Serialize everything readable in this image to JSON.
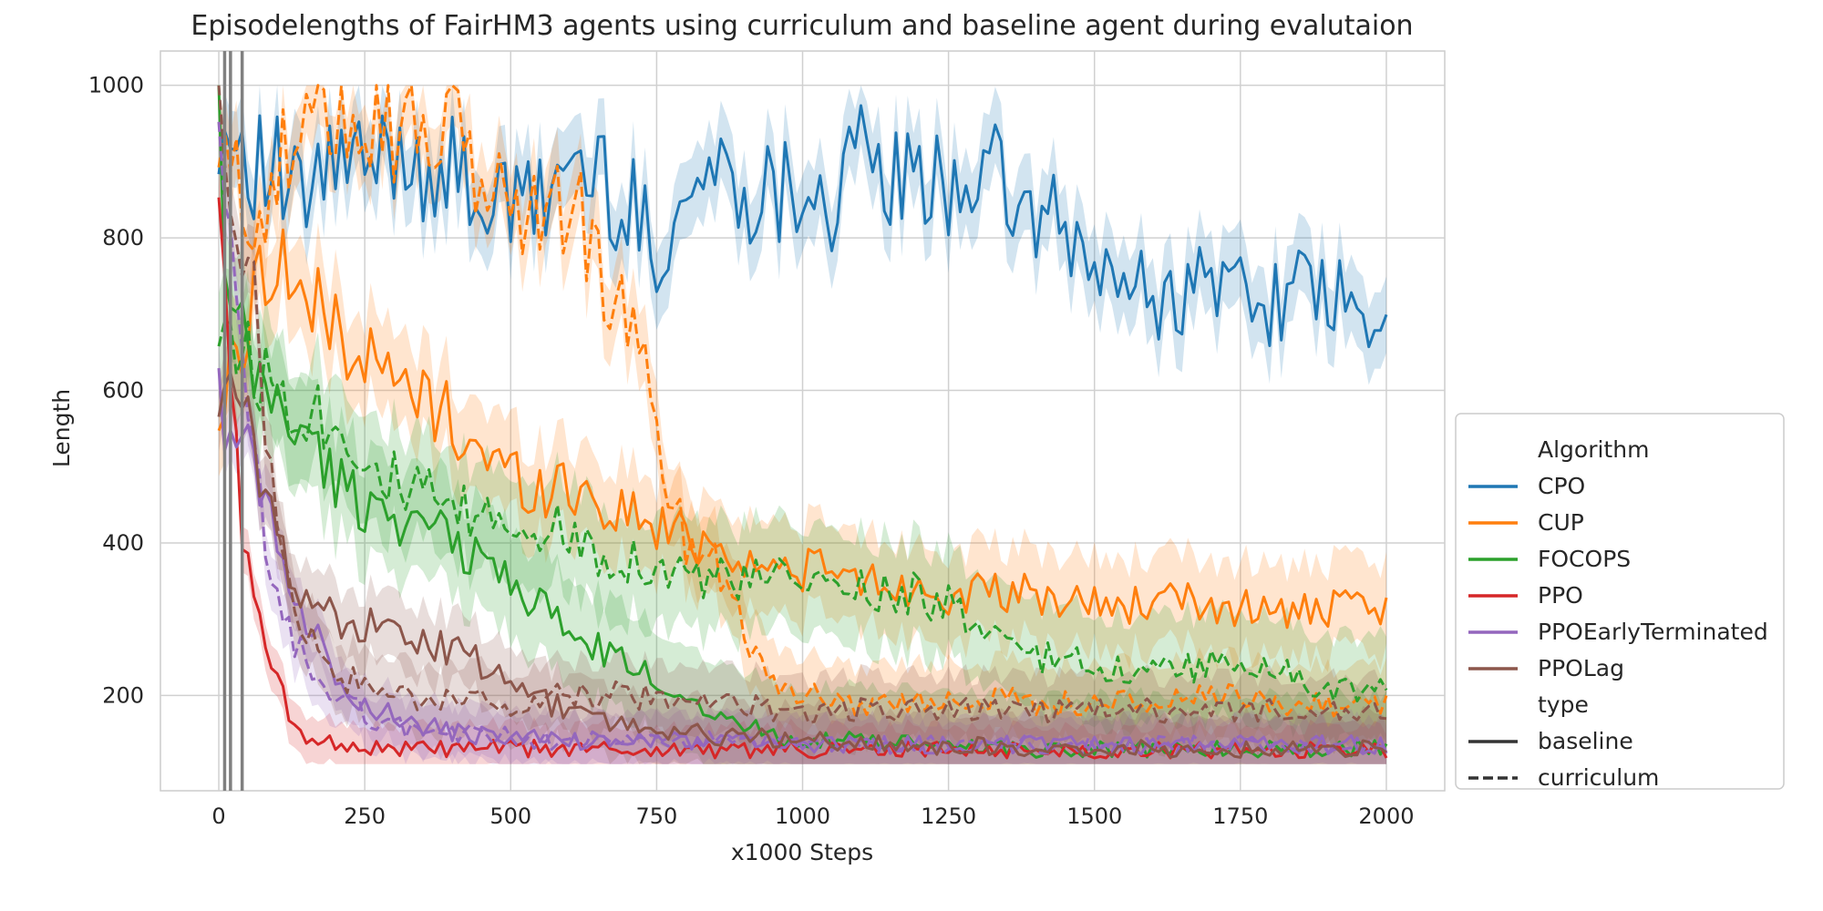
{
  "chart_data": {
    "type": "line",
    "title": "Episodelengths of FairHM3 agents using curriculum and baseline agent during evalutaion",
    "xlabel": "x1000 Steps",
    "ylabel": "Length",
    "xlim": [
      -100,
      2100
    ],
    "ylim": [
      75,
      1045
    ],
    "xticks": [
      0,
      250,
      500,
      750,
      1000,
      1250,
      1500,
      1750,
      2000
    ],
    "yticks": [
      200,
      400,
      600,
      800,
      1000
    ],
    "grid": true,
    "legend_placement": "center-right outside",
    "vertical_markers": [
      10,
      20,
      40
    ],
    "legend": {
      "algorithm_title": "Algorithm",
      "type_title": "type",
      "types": [
        {
          "name": "baseline",
          "dash": "solid"
        },
        {
          "name": "curriculum",
          "dash": "dashed"
        }
      ]
    },
    "series": [
      {
        "name": "CPO",
        "color": "#1f77b4",
        "baseline": {
          "x": [
            0,
            10,
            30,
            60,
            100,
            140,
            200,
            250,
            300,
            350,
            400,
            450,
            500,
            550,
            600,
            650,
            700,
            750,
            800,
            850,
            900,
            950,
            1000,
            1050,
            1100,
            1150,
            1200,
            1250,
            1300,
            1350,
            1400,
            1450,
            1500,
            1550,
            1600,
            1650,
            1700,
            1750,
            1800,
            1850,
            1900,
            1950,
            2000
          ],
          "y": [
            960,
            930,
            950,
            900,
            880,
            840,
            900,
            880,
            920,
            900,
            880,
            860,
            830,
            850,
            900,
            880,
            840,
            790,
            850,
            890,
            870,
            860,
            880,
            850,
            900,
            880,
            860,
            870,
            900,
            850,
            830,
            800,
            760,
            740,
            720,
            730,
            740,
            740,
            720,
            730,
            720,
            690,
            660
          ],
          "band": 50
        },
        "curriculum": null
      },
      {
        "name": "CUP",
        "color": "#ff7f0e",
        "baseline": {
          "x": [
            0,
            20,
            50,
            80,
            120,
            160,
            200,
            250,
            300,
            350,
            400,
            450,
            500,
            550,
            600,
            650,
            700,
            750,
            800,
            850,
            900,
            950,
            1000,
            1100,
            1200,
            1300,
            1400,
            1500,
            1600,
            1700,
            1800,
            1900,
            2000
          ],
          "y": [
            560,
            620,
            690,
            780,
            760,
            700,
            690,
            640,
            610,
            590,
            560,
            520,
            490,
            470,
            480,
            450,
            440,
            420,
            410,
            400,
            380,
            360,
            370,
            350,
            340,
            330,
            330,
            320,
            320,
            320,
            310,
            310,
            310
          ],
          "band": 60
        },
        "curriculum": {
          "x": [
            0,
            20,
            50,
            80,
            120,
            160,
            200,
            250,
            300,
            350,
            400,
            450,
            500,
            550,
            600,
            650,
            700,
            720,
            750,
            780,
            800,
            850,
            880,
            900,
            950,
            1000,
            1100,
            1200,
            1300,
            1400,
            1500,
            1600,
            1700,
            1800,
            1900,
            2000
          ],
          "y": [
            900,
            880,
            840,
            860,
            900,
            960,
            990,
            970,
            950,
            960,
            930,
            880,
            850,
            820,
            860,
            760,
            690,
            640,
            550,
            450,
            400,
            380,
            350,
            280,
            220,
            200,
            190,
            190,
            200,
            190,
            190,
            190,
            200,
            190,
            190,
            190
          ],
          "band": 50
        }
      },
      {
        "name": "FOCOPS",
        "color": "#2ca02c",
        "baseline": {
          "x": [
            0,
            10,
            30,
            60,
            100,
            150,
            200,
            250,
            300,
            350,
            400,
            450,
            500,
            550,
            600,
            650,
            700,
            750,
            800,
            850,
            900,
            950,
            1000,
            1100,
            1200,
            1300,
            1400,
            1500,
            1600,
            1700,
            1800,
            1900,
            2000
          ],
          "y": [
            990,
            720,
            680,
            620,
            580,
            540,
            480,
            450,
            440,
            420,
            400,
            380,
            350,
            320,
            280,
            260,
            240,
            220,
            200,
            180,
            160,
            150,
            140,
            140,
            135,
            135,
            130,
            130,
            130,
            130,
            130,
            130,
            130
          ],
          "band": 70
        },
        "curriculum": {
          "x": [
            0,
            20,
            50,
            100,
            150,
            200,
            250,
            300,
            350,
            400,
            450,
            500,
            550,
            600,
            650,
            700,
            750,
            800,
            850,
            900,
            950,
            1000,
            1050,
            1100,
            1150,
            1200,
            1250,
            1300,
            1400,
            1500,
            1600,
            1700,
            1800,
            1900,
            2000
          ],
          "y": [
            700,
            680,
            640,
            600,
            580,
            560,
            520,
            480,
            460,
            440,
            430,
            430,
            420,
            410,
            390,
            380,
            370,
            360,
            350,
            350,
            350,
            350,
            340,
            340,
            340,
            330,
            320,
            280,
            250,
            240,
            230,
            240,
            240,
            200,
            220
          ],
          "band": 70
        }
      },
      {
        "name": "PPO",
        "color": "#d62728",
        "baseline": {
          "x": [
            0,
            10,
            20,
            40,
            60,
            80,
            100,
            120,
            150,
            200,
            300,
            500,
            1000,
            1500,
            2000
          ],
          "y": [
            880,
            750,
            600,
            430,
            320,
            260,
            220,
            170,
            150,
            135,
            130,
            130,
            128,
            128,
            128
          ],
          "band": 30
        },
        "curriculum": null
      },
      {
        "name": "PPOEarlyTerminated",
        "color": "#9467bd",
        "baseline": {
          "x": [
            0,
            20,
            50,
            80,
            100,
            150,
            200,
            250,
            300,
            400,
            500,
            600,
            700,
            800,
            900,
            1000,
            1200,
            1500,
            1800,
            2000
          ],
          "y": [
            580,
            560,
            520,
            460,
            400,
            300,
            230,
            190,
            170,
            150,
            145,
            140,
            140,
            140,
            140,
            135,
            135,
            135,
            135,
            135
          ],
          "band": 35
        },
        "curriculum": {
          "x": [
            0,
            20,
            50,
            80,
            100,
            150,
            200,
            250,
            300,
            400,
            500,
            600,
            700,
            800,
            900,
            1000,
            1200,
            1500,
            1800,
            2000
          ],
          "y": [
            900,
            760,
            560,
            400,
            320,
            240,
            200,
            175,
            160,
            150,
            145,
            140,
            140,
            140,
            140,
            135,
            135,
            135,
            135,
            135
          ],
          "band": 35
        }
      },
      {
        "name": "PPOLag",
        "color": "#8c564b",
        "baseline": {
          "x": [
            0,
            20,
            50,
            80,
            100,
            150,
            200,
            250,
            300,
            350,
            400,
            450,
            500,
            600,
            700,
            800,
            1000,
            1200,
            1500,
            1800,
            2000
          ],
          "y": [
            600,
            590,
            550,
            470,
            400,
            330,
            300,
            290,
            280,
            270,
            260,
            240,
            210,
            180,
            160,
            150,
            140,
            135,
            130,
            130,
            130
          ],
          "band": 45
        },
        "curriculum": {
          "x": [
            0,
            20,
            40,
            60,
            80,
            100,
            150,
            200,
            250,
            300,
            400,
            500,
            600,
            700,
            800,
            1000,
            1200,
            1400,
            1600,
            1800,
            2000
          ],
          "y": [
            950,
            880,
            820,
            720,
            560,
            400,
            280,
            230,
            210,
            200,
            190,
            190,
            200,
            200,
            190,
            180,
            180,
            180,
            180,
            180,
            175
          ],
          "band": 45
        }
      }
    ]
  }
}
